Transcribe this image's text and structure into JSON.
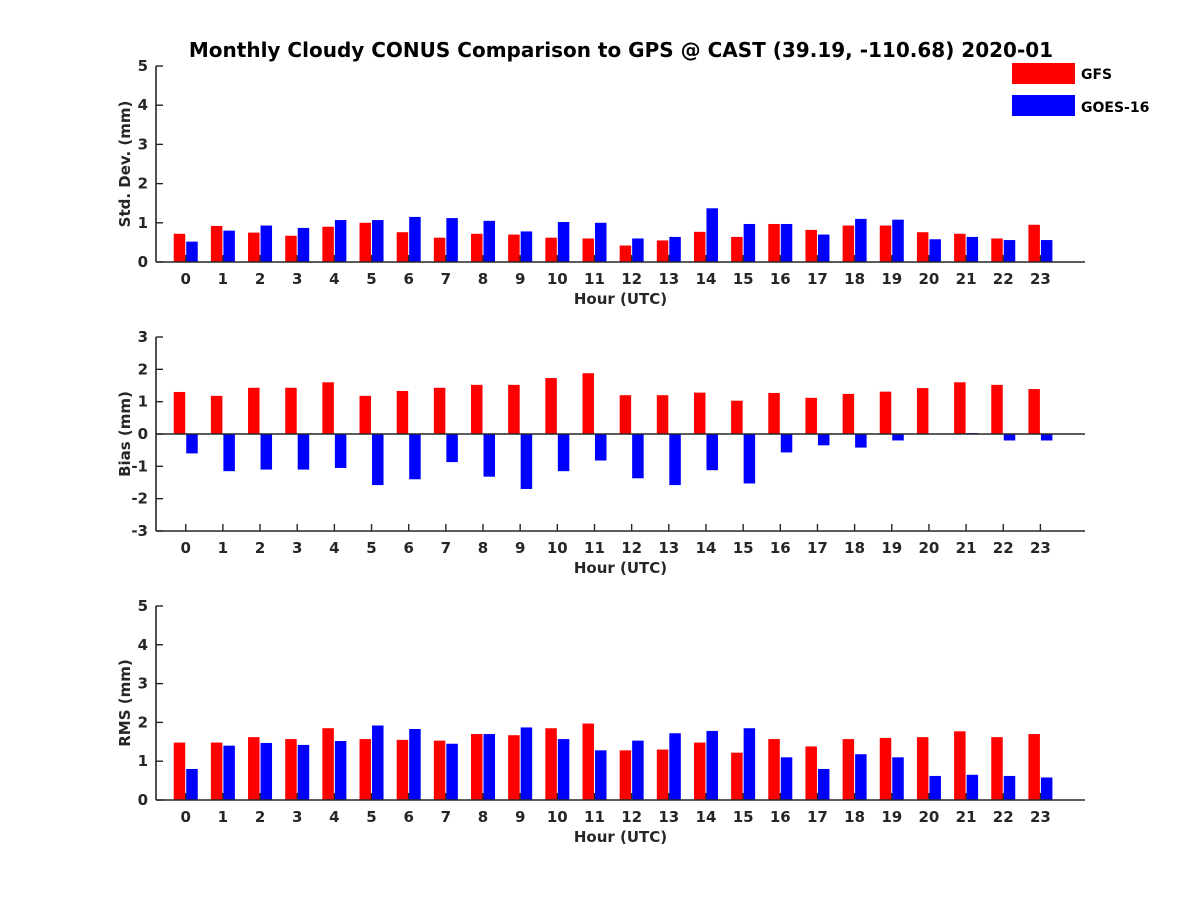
{
  "title": "Monthly Cloudy CONUS Comparison to GPS @ CAST (39.19, -110.68) 2020-01",
  "colors": {
    "GFS": "#ff0000",
    "GOES-16": "#0000ff",
    "axis": "#262626"
  },
  "legend": {
    "placement": "top-right",
    "entries": [
      "GFS",
      "GOES-16"
    ]
  },
  "chart_data": [
    {
      "type": "bar",
      "categories": [
        "0",
        "1",
        "2",
        "3",
        "4",
        "5",
        "6",
        "7",
        "8",
        "9",
        "10",
        "11",
        "12",
        "13",
        "14",
        "15",
        "16",
        "17",
        "18",
        "19",
        "20",
        "21",
        "22",
        "23"
      ],
      "xlabel": "Hour (UTC)",
      "ylabel": "Std. Dev. (mm)",
      "ylim": [
        0,
        5
      ],
      "yticks": [
        "0",
        "1",
        "2",
        "3",
        "4",
        "5"
      ],
      "grid": false,
      "series": [
        {
          "name": "GFS",
          "values": [
            0.72,
            0.92,
            0.75,
            0.67,
            0.9,
            1.0,
            0.76,
            0.62,
            0.72,
            0.7,
            0.62,
            0.6,
            0.42,
            0.55,
            0.77,
            0.64,
            0.97,
            0.82,
            0.93,
            0.93,
            0.76,
            0.72,
            0.6,
            0.95
          ]
        },
        {
          "name": "GOES-16",
          "values": [
            0.52,
            0.8,
            0.93,
            0.87,
            1.07,
            1.07,
            1.15,
            1.12,
            1.05,
            0.78,
            1.02,
            1.0,
            0.6,
            0.64,
            1.37,
            0.97,
            0.97,
            0.7,
            1.1,
            1.08,
            0.58,
            0.64,
            0.56,
            0.56
          ]
        }
      ]
    },
    {
      "type": "bar",
      "categories": [
        "0",
        "1",
        "2",
        "3",
        "4",
        "5",
        "6",
        "7",
        "8",
        "9",
        "10",
        "11",
        "12",
        "13",
        "14",
        "15",
        "16",
        "17",
        "18",
        "19",
        "20",
        "21",
        "22",
        "23"
      ],
      "xlabel": "Hour (UTC)",
      "ylabel": "Bias (mm)",
      "ylim": [
        -3,
        3
      ],
      "yticks": [
        "-3",
        "-2",
        "-1",
        "0",
        "1",
        "2",
        "3"
      ],
      "grid": false,
      "series": [
        {
          "name": "GFS",
          "values": [
            1.3,
            1.18,
            1.43,
            1.43,
            1.6,
            1.18,
            1.33,
            1.43,
            1.52,
            1.52,
            1.73,
            1.88,
            1.2,
            1.2,
            1.28,
            1.03,
            1.27,
            1.12,
            1.24,
            1.31,
            1.42,
            1.6,
            1.52,
            1.39
          ]
        },
        {
          "name": "GOES-16",
          "values": [
            -0.6,
            -1.15,
            -1.1,
            -1.1,
            -1.05,
            -1.58,
            -1.4,
            -0.87,
            -1.32,
            -1.7,
            -1.15,
            -0.82,
            -1.37,
            -1.58,
            -1.12,
            -1.53,
            -0.57,
            -0.35,
            -0.42,
            -0.2,
            0.0,
            0.03,
            -0.2,
            -0.2
          ]
        }
      ]
    },
    {
      "type": "bar",
      "categories": [
        "0",
        "1",
        "2",
        "3",
        "4",
        "5",
        "6",
        "7",
        "8",
        "9",
        "10",
        "11",
        "12",
        "13",
        "14",
        "15",
        "16",
        "17",
        "18",
        "19",
        "20",
        "21",
        "22",
        "23"
      ],
      "xlabel": "Hour (UTC)",
      "ylabel": "RMS (mm)",
      "ylim": [
        0,
        5
      ],
      "yticks": [
        "0",
        "1",
        "2",
        "3",
        "4",
        "5"
      ],
      "grid": false,
      "series": [
        {
          "name": "GFS",
          "values": [
            1.48,
            1.48,
            1.62,
            1.57,
            1.85,
            1.57,
            1.55,
            1.53,
            1.7,
            1.67,
            1.85,
            1.97,
            1.28,
            1.3,
            1.48,
            1.22,
            1.57,
            1.38,
            1.57,
            1.6,
            1.62,
            1.77,
            1.62,
            1.7
          ]
        },
        {
          "name": "GOES-16",
          "values": [
            0.8,
            1.4,
            1.47,
            1.42,
            1.52,
            1.92,
            1.83,
            1.45,
            1.7,
            1.87,
            1.57,
            1.28,
            1.53,
            1.72,
            1.78,
            1.85,
            1.1,
            0.8,
            1.18,
            1.1,
            0.62,
            0.65,
            0.62,
            0.58
          ]
        }
      ]
    }
  ]
}
